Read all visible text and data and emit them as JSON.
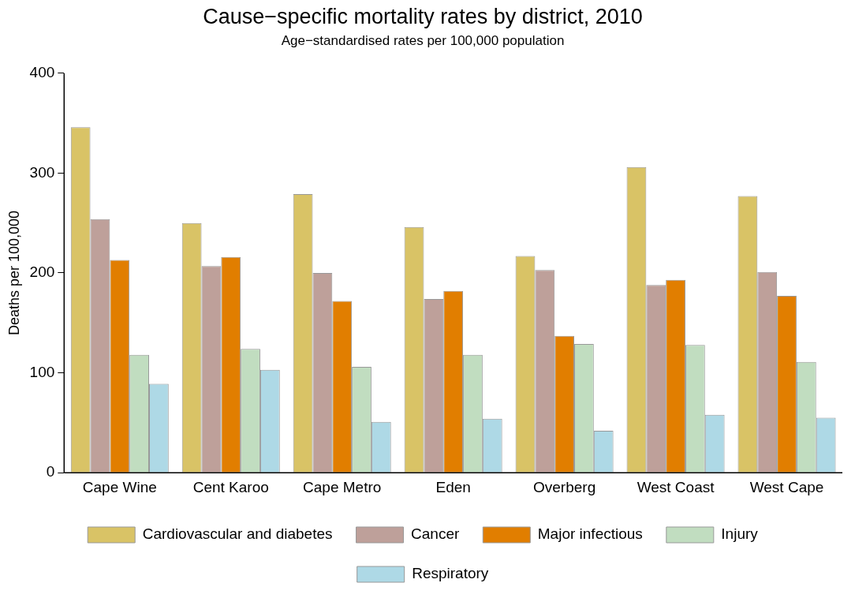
{
  "chart_data": {
    "type": "bar",
    "title": "Cause−specific mortality rates by district, 2010",
    "subtitle": "Age−standardised rates per 100,000 population",
    "ylabel": "Deaths per 100,000",
    "categories": [
      "Cape Wine",
      "Cent Karoo",
      "Cape Metro",
      "Eden",
      "Overberg",
      "West Coast",
      "West Cape"
    ],
    "series": [
      {
        "name": "Cardiovascular and diabetes",
        "color": "#d9c366",
        "values": [
          346,
          250,
          279,
          246,
          217,
          306,
          277
        ]
      },
      {
        "name": "Cancer",
        "color": "#bea09a",
        "values": [
          254,
          207,
          200,
          174,
          203,
          188,
          201
        ]
      },
      {
        "name": "Major infectious",
        "color": "#e17e00",
        "values": [
          213,
          216,
          172,
          182,
          137,
          193,
          177
        ]
      },
      {
        "name": "Injury",
        "color": "#c1ddc0",
        "values": [
          118,
          124,
          106,
          118,
          129,
          128,
          111
        ]
      },
      {
        "name": "Respiratory",
        "color": "#aed9e6",
        "values": [
          89,
          103,
          51,
          54,
          42,
          58,
          55
        ]
      }
    ],
    "ylim": [
      0,
      400
    ],
    "yticks": [
      0,
      100,
      200,
      300,
      400
    ],
    "grid": false,
    "legend": "bottom"
  }
}
